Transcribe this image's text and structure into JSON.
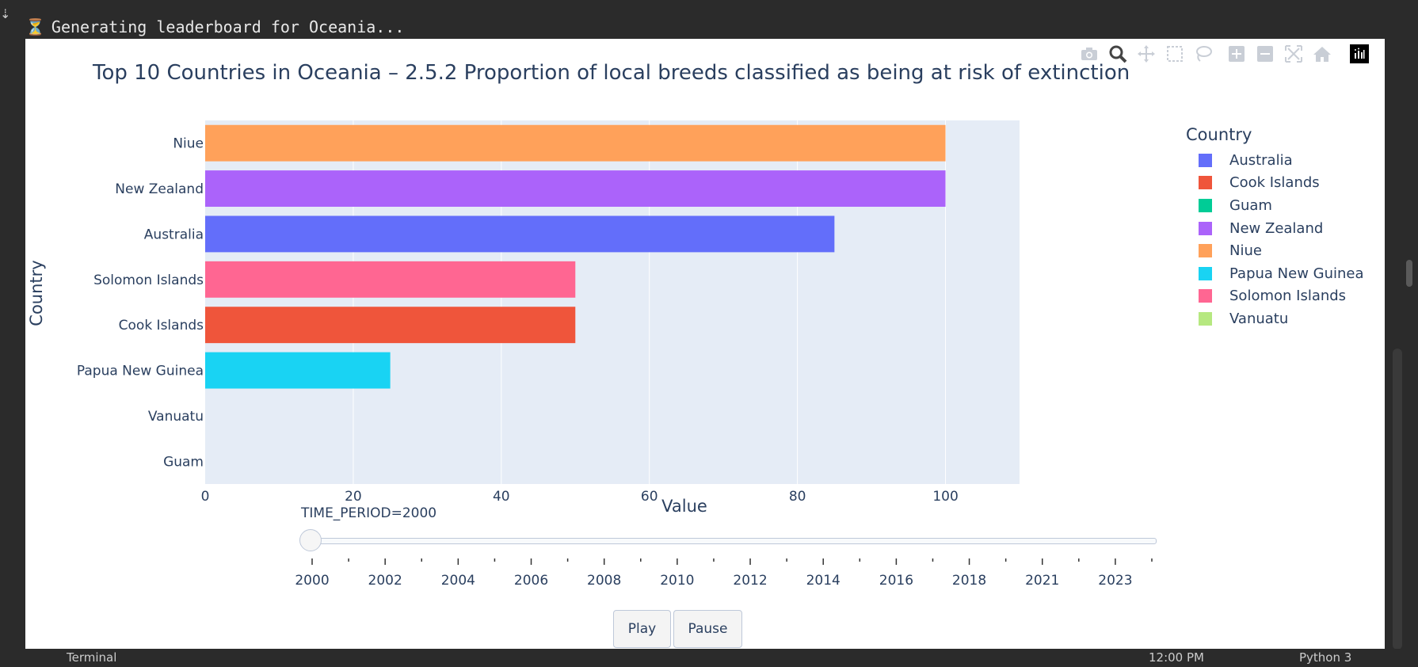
{
  "status": {
    "icon": "hourglass-icon",
    "glyph": "⏳",
    "text": "Generating leaderboard for Oceania..."
  },
  "toolbar": {
    "buttons": [
      "camera-icon",
      "zoom-icon",
      "pan-icon",
      "box-select-icon",
      "lasso-select-icon",
      "zoom-in-icon",
      "zoom-out-icon",
      "autoscale-icon",
      "reset-axes-icon",
      "plotly-logo-icon"
    ]
  },
  "bottom_bar": {
    "terminal": "Terminal",
    "time": "12:00 PM",
    "python": "Python 3"
  },
  "chart_data": {
    "type": "bar",
    "orientation": "horizontal",
    "title": "Top 10 Countries in Oceania – 2.5.2 Proportion of local breeds classified as being at risk of extinction",
    "xlabel": "Value",
    "ylabel": "Country",
    "xlim": [
      0,
      110
    ],
    "xticks": [
      0,
      20,
      40,
      60,
      80,
      100
    ],
    "grid": true,
    "legend_title": "Country",
    "legend_position": "right",
    "categories": [
      "Niue",
      "New Zealand",
      "Australia",
      "Solomon Islands",
      "Cook Islands",
      "Papua New Guinea",
      "Vanuatu",
      "Guam"
    ],
    "values": [
      100,
      100,
      85,
      50,
      50,
      25,
      0,
      0
    ],
    "colors": {
      "Australia": "#636efa",
      "Cook Islands": "#ef553b",
      "Guam": "#00cc96",
      "New Zealand": "#ab63fa",
      "Niue": "#ffa15a",
      "Papua New Guinea": "#19d3f3",
      "Solomon Islands": "#ff6692",
      "Vanuatu": "#b6e880"
    },
    "legend": [
      "Australia",
      "Cook Islands",
      "Guam",
      "New Zealand",
      "Niue",
      "Papua New Guinea",
      "Solomon Islands",
      "Vanuatu"
    ]
  },
  "slider": {
    "current_label": "TIME_PERIOD=2000",
    "current_value": 2000,
    "steps": [
      "2000",
      "2001",
      "2002",
      "2003",
      "2004",
      "2005",
      "2006",
      "2007",
      "2008",
      "2009",
      "2010",
      "2011",
      "2012",
      "2013",
      "2014",
      "2015",
      "2016",
      "2017",
      "2018",
      "2019",
      "2021",
      "2022",
      "2023",
      "2024"
    ],
    "labeled_steps": [
      "2000",
      "2002",
      "2004",
      "2006",
      "2008",
      "2010",
      "2012",
      "2014",
      "2016",
      "2018",
      "2021",
      "2023"
    ]
  },
  "controls": {
    "play_label": "Play",
    "pause_label": "Pause"
  }
}
